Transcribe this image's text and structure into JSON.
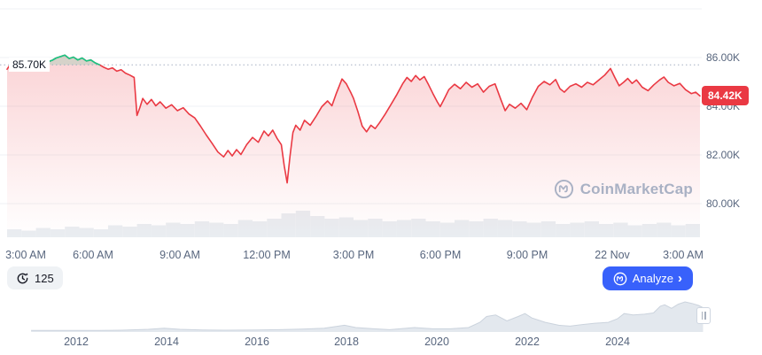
{
  "colors": {
    "up_green": "#16c784",
    "down_red": "#ea3943",
    "accent_blue": "#3861fb",
    "grid": "#eff2f5",
    "axis_text": "#58667e",
    "watermark_gray": "#a9b1c4"
  },
  "price_axis": {
    "prev_close_label": "85.70K",
    "current_price_label": "84.42K",
    "tick_labels": [
      "86.00K",
      "84.00K",
      "82.00K",
      "80.00K"
    ]
  },
  "time_axis": {
    "tick_labels": [
      "3:00 AM",
      "6:00 AM",
      "9:00 AM",
      "12:00 PM",
      "3:00 PM",
      "6:00 PM",
      "9:00 PM",
      "22 Nov",
      "3:00 AM"
    ]
  },
  "controls": {
    "history_count": "125",
    "analyze_label": "Analyze",
    "chevron": "›"
  },
  "watermark": {
    "text": "CoinMarketCap"
  },
  "navigator": {
    "year_labels": [
      "2012",
      "2014",
      "2016",
      "2018",
      "2020",
      "2022",
      "2024"
    ]
  },
  "chart_data": [
    {
      "type": "line",
      "name": "btc-price-intraday",
      "x_unit": "hours since 3:00 AM",
      "x_range": [
        0,
        24
      ],
      "y_unit": "USD thousands",
      "y_visible_range": [
        78.5,
        88.4
      ],
      "grid_values": [
        88,
        86,
        84,
        82,
        80
      ],
      "y_tick_values": [
        86,
        84,
        82,
        80
      ],
      "threshold": 85.7,
      "green_range": [
        1.2,
        3.2
      ],
      "last_value": 84.42,
      "points": [
        [
          0,
          85.52
        ],
        [
          0.15,
          85.78
        ],
        [
          0.3,
          85.55
        ],
        [
          0.45,
          85.7
        ],
        [
          0.6,
          85.58
        ],
        [
          0.75,
          85.72
        ],
        [
          0.9,
          85.6
        ],
        [
          1.05,
          85.68
        ],
        [
          1.2,
          85.76
        ],
        [
          1.4,
          85.82
        ],
        [
          1.55,
          85.88
        ],
        [
          1.7,
          85.98
        ],
        [
          1.85,
          86.04
        ],
        [
          2,
          86.1
        ],
        [
          2.15,
          85.96
        ],
        [
          2.3,
          86.02
        ],
        [
          2.45,
          85.9
        ],
        [
          2.6,
          85.98
        ],
        [
          2.75,
          85.86
        ],
        [
          2.9,
          85.9
        ],
        [
          3.05,
          85.78
        ],
        [
          3.2,
          85.7
        ],
        [
          3.35,
          85.6
        ],
        [
          3.5,
          85.52
        ],
        [
          3.65,
          85.58
        ],
        [
          3.8,
          85.44
        ],
        [
          3.95,
          85.5
        ],
        [
          4.1,
          85.36
        ],
        [
          4.25,
          85.28
        ],
        [
          4.4,
          85.18
        ],
        [
          4.5,
          83.62
        ],
        [
          4.6,
          83.95
        ],
        [
          4.7,
          84.32
        ],
        [
          4.85,
          84.08
        ],
        [
          5,
          84.28
        ],
        [
          5.15,
          84.02
        ],
        [
          5.3,
          84.18
        ],
        [
          5.5,
          83.92
        ],
        [
          5.7,
          84.06
        ],
        [
          5.9,
          83.82
        ],
        [
          6.1,
          83.94
        ],
        [
          6.3,
          83.68
        ],
        [
          6.5,
          83.52
        ],
        [
          6.7,
          83.18
        ],
        [
          6.9,
          82.82
        ],
        [
          7.1,
          82.48
        ],
        [
          7.3,
          82.12
        ],
        [
          7.5,
          81.92
        ],
        [
          7.65,
          82.18
        ],
        [
          7.8,
          81.96
        ],
        [
          7.95,
          82.22
        ],
        [
          8.1,
          82.02
        ],
        [
          8.3,
          82.42
        ],
        [
          8.5,
          82.72
        ],
        [
          8.7,
          82.52
        ],
        [
          8.9,
          82.98
        ],
        [
          9.05,
          82.78
        ],
        [
          9.2,
          83.02
        ],
        [
          9.35,
          82.68
        ],
        [
          9.5,
          82.42
        ],
        [
          9.6,
          81.55
        ],
        [
          9.7,
          80.85
        ],
        [
          9.8,
          81.95
        ],
        [
          9.9,
          82.92
        ],
        [
          10,
          83.22
        ],
        [
          10.15,
          83.02
        ],
        [
          10.3,
          83.42
        ],
        [
          10.5,
          83.22
        ],
        [
          10.7,
          83.58
        ],
        [
          10.9,
          83.98
        ],
        [
          11.1,
          84.22
        ],
        [
          11.25,
          84.02
        ],
        [
          11.4,
          84.52
        ],
        [
          11.6,
          85.12
        ],
        [
          11.75,
          84.92
        ],
        [
          11.9,
          84.58
        ],
        [
          12,
          84.32
        ],
        [
          12.15,
          83.78
        ],
        [
          12.3,
          83.18
        ],
        [
          12.45,
          82.95
        ],
        [
          12.6,
          83.22
        ],
        [
          12.75,
          83.08
        ],
        [
          12.9,
          83.32
        ],
        [
          13.1,
          83.68
        ],
        [
          13.3,
          84.08
        ],
        [
          13.5,
          84.48
        ],
        [
          13.7,
          84.92
        ],
        [
          13.85,
          85.18
        ],
        [
          14,
          85.02
        ],
        [
          14.15,
          85.26
        ],
        [
          14.3,
          85.08
        ],
        [
          14.45,
          85.22
        ],
        [
          14.6,
          84.88
        ],
        [
          14.75,
          84.52
        ],
        [
          14.9,
          84.18
        ],
        [
          15,
          83.98
        ],
        [
          15.15,
          84.32
        ],
        [
          15.3,
          84.68
        ],
        [
          15.5,
          84.9
        ],
        [
          15.7,
          84.72
        ],
        [
          15.9,
          84.98
        ],
        [
          16.1,
          84.78
        ],
        [
          16.3,
          84.92
        ],
        [
          16.5,
          84.58
        ],
        [
          16.7,
          84.82
        ],
        [
          16.9,
          84.92
        ],
        [
          17.1,
          84.28
        ],
        [
          17.25,
          83.82
        ],
        [
          17.4,
          84.08
        ],
        [
          17.6,
          83.92
        ],
        [
          17.8,
          84.12
        ],
        [
          18,
          83.86
        ],
        [
          18.2,
          84.38
        ],
        [
          18.4,
          84.82
        ],
        [
          18.6,
          85.02
        ],
        [
          18.8,
          84.88
        ],
        [
          19,
          85.1
        ],
        [
          19.15,
          84.72
        ],
        [
          19.3,
          84.58
        ],
        [
          19.5,
          84.82
        ],
        [
          19.7,
          84.92
        ],
        [
          19.9,
          84.78
        ],
        [
          20.1,
          84.98
        ],
        [
          20.3,
          84.88
        ],
        [
          20.5,
          85.08
        ],
        [
          20.7,
          85.28
        ],
        [
          20.9,
          85.55
        ],
        [
          21.05,
          85.18
        ],
        [
          21.2,
          84.84
        ],
        [
          21.35,
          84.98
        ],
        [
          21.5,
          85.14
        ],
        [
          21.65,
          84.94
        ],
        [
          21.8,
          85.08
        ],
        [
          22,
          84.78
        ],
        [
          22.2,
          84.64
        ],
        [
          22.4,
          84.88
        ],
        [
          22.6,
          85.08
        ],
        [
          22.75,
          85.2
        ],
        [
          22.9,
          84.98
        ],
        [
          23.1,
          84.84
        ],
        [
          23.3,
          84.94
        ],
        [
          23.5,
          84.68
        ],
        [
          23.7,
          84.52
        ],
        [
          23.85,
          84.58
        ],
        [
          24,
          84.42
        ]
      ],
      "volume": [
        0.3,
        0.25,
        0.35,
        0.3,
        0.4,
        0.35,
        0.3,
        0.45,
        0.4,
        0.5,
        0.45,
        0.55,
        0.5,
        0.6,
        0.55,
        0.5,
        0.65,
        0.6,
        0.7,
        0.9,
        1,
        0.8,
        0.7,
        0.75,
        0.65,
        0.7,
        0.6,
        0.65,
        0.7,
        0.6,
        0.55,
        0.65,
        0.6,
        0.7,
        0.65,
        0.6,
        0.55,
        0.6,
        0.5,
        0.55,
        0.6,
        0.5,
        0.55,
        0.45,
        0.5,
        0.55,
        0.45,
        0.5
      ]
    },
    {
      "type": "area",
      "name": "btc-history-navigator",
      "x_unit": "year",
      "x_range": [
        2011,
        2025.9
      ],
      "y_unit": "normalized price",
      "x_ticks": [
        2012,
        2014,
        2016,
        2018,
        2020,
        2022,
        2024
      ],
      "points": [
        [
          2011,
          0.02
        ],
        [
          2011.5,
          0.02
        ],
        [
          2012,
          0.025
        ],
        [
          2012.5,
          0.02
        ],
        [
          2013,
          0.03
        ],
        [
          2013.6,
          0.06
        ],
        [
          2013.95,
          0.1
        ],
        [
          2014.3,
          0.06
        ],
        [
          2014.8,
          0.04
        ],
        [
          2015.3,
          0.03
        ],
        [
          2016,
          0.04
        ],
        [
          2016.5,
          0.05
        ],
        [
          2017,
          0.07
        ],
        [
          2017.5,
          0.1
        ],
        [
          2017.95,
          0.2
        ],
        [
          2018.2,
          0.12
        ],
        [
          2018.6,
          0.08
        ],
        [
          2018.95,
          0.05
        ],
        [
          2019.5,
          0.12
        ],
        [
          2019.9,
          0.08
        ],
        [
          2020.3,
          0.08
        ],
        [
          2020.7,
          0.12
        ],
        [
          2020.95,
          0.3
        ],
        [
          2021.1,
          0.5
        ],
        [
          2021.3,
          0.55
        ],
        [
          2021.55,
          0.35
        ],
        [
          2021.8,
          0.5
        ],
        [
          2021.95,
          0.6
        ],
        [
          2022.1,
          0.45
        ],
        [
          2022.4,
          0.3
        ],
        [
          2022.7,
          0.2
        ],
        [
          2022.95,
          0.17
        ],
        [
          2023.2,
          0.22
        ],
        [
          2023.5,
          0.27
        ],
        [
          2023.8,
          0.3
        ],
        [
          2024,
          0.42
        ],
        [
          2024.15,
          0.6
        ],
        [
          2024.35,
          0.55
        ],
        [
          2024.6,
          0.58
        ],
        [
          2024.8,
          0.62
        ],
        [
          2024.95,
          0.85
        ],
        [
          2025.05,
          0.9
        ],
        [
          2025.2,
          0.78
        ],
        [
          2025.35,
          0.92
        ],
        [
          2025.5,
          1
        ],
        [
          2025.65,
          0.95
        ],
        [
          2025.8,
          0.88
        ],
        [
          2025.9,
          0.8
        ]
      ]
    }
  ]
}
